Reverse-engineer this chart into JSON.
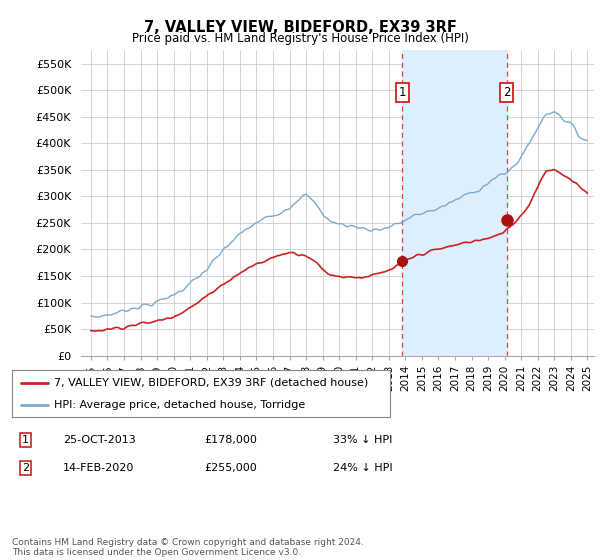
{
  "title": "7, VALLEY VIEW, BIDEFORD, EX39 3RF",
  "subtitle": "Price paid vs. HM Land Registry's House Price Index (HPI)",
  "legend_entry1": "7, VALLEY VIEW, BIDEFORD, EX39 3RF (detached house)",
  "legend_entry2": "HPI: Average price, detached house, Torridge",
  "table_row1": [
    "1",
    "25-OCT-2013",
    "£178,000",
    "33% ↓ HPI"
  ],
  "table_row2": [
    "2",
    "14-FEB-2020",
    "£255,000",
    "24% ↓ HPI"
  ],
  "footnote": "Contains HM Land Registry data © Crown copyright and database right 2024.\nThis data is licensed under the Open Government Licence v3.0.",
  "hpi_color": "#7aaad0",
  "price_color": "#cc2222",
  "vline_color": "#dd4444",
  "shaded_color": "#ddeeff",
  "ylim": [
    0,
    575000
  ],
  "yticks": [
    0,
    50000,
    100000,
    150000,
    200000,
    250000,
    300000,
    350000,
    400000,
    450000,
    500000,
    550000
  ],
  "ytick_labels": [
    "£0",
    "£50K",
    "£100K",
    "£150K",
    "£200K",
    "£250K",
    "£300K",
    "£350K",
    "£400K",
    "£450K",
    "£500K",
    "£550K"
  ],
  "sale1_year": 2013.82,
  "sale2_year": 2020.12,
  "sale1_price": 178000,
  "sale2_price": 255000,
  "hpi_years": [
    1995,
    1995.5,
    1996,
    1996.5,
    1997,
    1997.5,
    1998,
    1998.5,
    1999,
    1999.5,
    2000,
    2000.5,
    2001,
    2001.5,
    2002,
    2002.5,
    2003,
    2003.5,
    2004,
    2004.5,
    2005,
    2005.5,
    2006,
    2006.5,
    2007,
    2007.5,
    2008,
    2008.5,
    2009,
    2009.5,
    2010,
    2010.5,
    2011,
    2011.5,
    2012,
    2012.5,
    2013,
    2013.5,
    2014,
    2014.5,
    2015,
    2015.5,
    2016,
    2016.5,
    2017,
    2017.5,
    2018,
    2018.5,
    2019,
    2019.5,
    2020,
    2020.5,
    2021,
    2021.5,
    2022,
    2022.5,
    2023,
    2023.5,
    2024,
    2024.5,
    2025
  ],
  "hpi_values": [
    72000,
    74000,
    77000,
    80000,
    85000,
    90000,
    93000,
    96000,
    100000,
    108000,
    115000,
    125000,
    135000,
    148000,
    162000,
    180000,
    198000,
    215000,
    228000,
    240000,
    250000,
    258000,
    265000,
    272000,
    280000,
    295000,
    302000,
    288000,
    268000,
    252000,
    248000,
    245000,
    243000,
    240000,
    237000,
    238000,
    242000,
    248000,
    255000,
    262000,
    268000,
    273000,
    278000,
    284000,
    292000,
    300000,
    308000,
    315000,
    325000,
    335000,
    342000,
    355000,
    375000,
    400000,
    430000,
    455000,
    462000,
    448000,
    435000,
    415000,
    405000
  ],
  "price_years": [
    1995,
    1995.5,
    1996,
    1996.5,
    1997,
    1997.5,
    1998,
    1998.5,
    1999,
    1999.5,
    2000,
    2000.5,
    2001,
    2001.5,
    2002,
    2002.5,
    2003,
    2003.5,
    2004,
    2004.5,
    2005,
    2005.5,
    2006,
    2006.5,
    2007,
    2007.5,
    2008,
    2008.5,
    2009,
    2009.5,
    2010,
    2010.5,
    2011,
    2011.5,
    2012,
    2012.5,
    2013,
    2013.5,
    2014,
    2014.5,
    2015,
    2015.5,
    2016,
    2016.5,
    2017,
    2017.5,
    2018,
    2018.5,
    2019,
    2019.5,
    2020,
    2020.5,
    2021,
    2021.5,
    2022,
    2022.5,
    2023,
    2023.5,
    2024,
    2024.5,
    2025
  ],
  "price_values": [
    46000,
    48000,
    50000,
    52000,
    54000,
    57000,
    60000,
    62000,
    65000,
    70000,
    75000,
    82000,
    90000,
    100000,
    112000,
    125000,
    135000,
    145000,
    155000,
    165000,
    172000,
    178000,
    185000,
    190000,
    195000,
    192000,
    190000,
    178000,
    162000,
    152000,
    150000,
    148000,
    148000,
    148000,
    150000,
    155000,
    160000,
    168000,
    178000,
    186000,
    192000,
    196000,
    200000,
    204000,
    208000,
    212000,
    215000,
    218000,
    220000,
    225000,
    235000,
    248000,
    265000,
    285000,
    320000,
    348000,
    352000,
    340000,
    330000,
    318000,
    308000
  ]
}
